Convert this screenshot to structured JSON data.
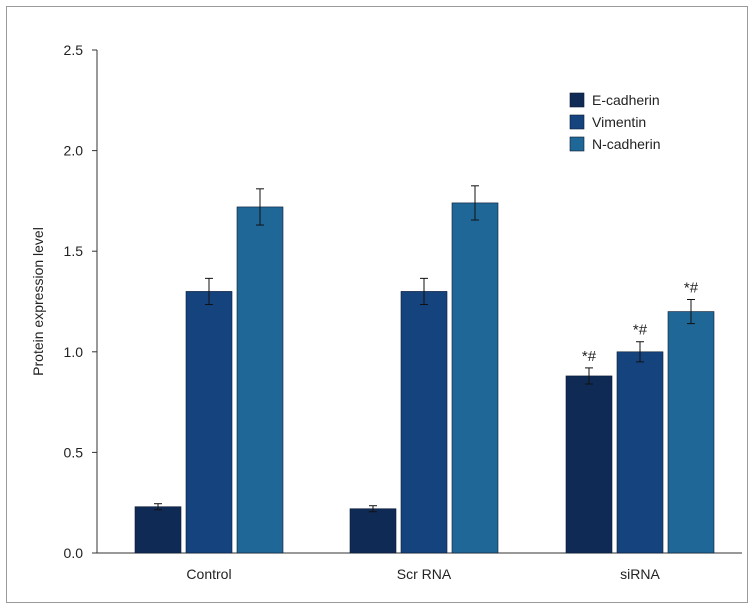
{
  "chart_data": {
    "type": "bar",
    "title": "",
    "ylabel": "Protein expression level",
    "xlabel": "",
    "ylim": [
      0,
      2.5
    ],
    "yticks": [
      "0.0",
      "0.5",
      "1.0",
      "1.5",
      "2.0",
      "2.5"
    ],
    "categories": [
      "Control",
      "Scr RNA",
      "siRNA"
    ],
    "series": [
      {
        "name": "E-cadherin",
        "color": "#0f2a55",
        "values": [
          0.23,
          0.22,
          0.88
        ],
        "errors": [
          0.015,
          0.015,
          0.04
        ],
        "annotations": [
          "",
          "",
          "*#"
        ]
      },
      {
        "name": "Vimentin",
        "color": "#15437e",
        "values": [
          1.3,
          1.3,
          1.0
        ],
        "errors": [
          0.065,
          0.065,
          0.05
        ],
        "annotations": [
          "",
          "",
          "*#"
        ]
      },
      {
        "name": "N-cadherin",
        "color": "#1f6797",
        "values": [
          1.72,
          1.74,
          1.2
        ],
        "errors": [
          0.09,
          0.085,
          0.06
        ],
        "annotations": [
          "",
          "",
          "*#"
        ]
      }
    ],
    "legend_position": "top-right",
    "grid": false
  }
}
